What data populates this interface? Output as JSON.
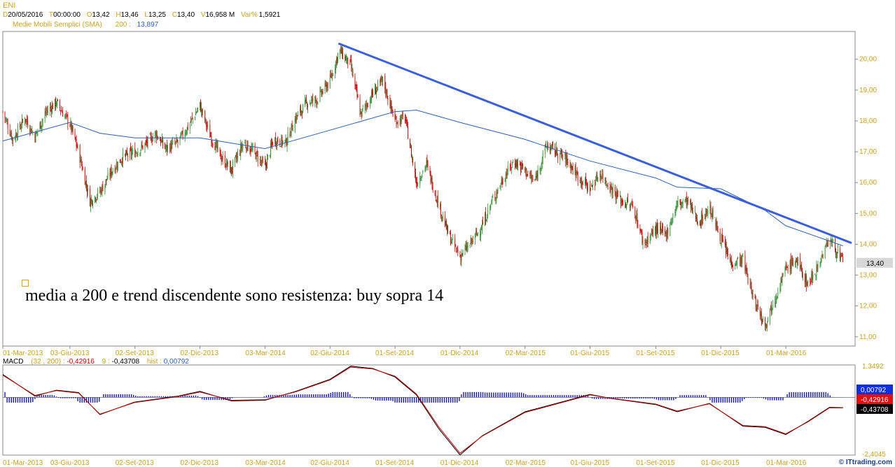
{
  "header": {
    "ticker": "ENI",
    "date_label": "D",
    "date": "20/05/2016",
    "time_label": "T",
    "time": "00:00:00",
    "open_label": "O",
    "open": "13,42",
    "high_label": "H",
    "high": "13,46",
    "low_label": "L",
    "low": "13,25",
    "close_label": "C",
    "close": "13,40",
    "vol_label": "V",
    "volume": "16,958 M",
    "var_label": "Var%",
    "var": "1,5921",
    "sma_name": "Medie Mobili Semplici (SMA)",
    "sma_period": "200 :",
    "sma_value": "13,897"
  },
  "annotation": "media a 200 e trend discendente sono resistenza: buy sopra 14",
  "price_tag": "13,40",
  "macd_header": {
    "name": "MACD",
    "params": "(32 , 200) :",
    "macd": "-0,42916",
    "signal_label": "9 :",
    "signal": "-0,43708",
    "hist_label": "hist :",
    "hist": "0,00792"
  },
  "macd_tags": {
    "hist": "0,00792",
    "macd": "-0,42916",
    "signal": "-0,43708"
  },
  "macd_axis": {
    "top": "1,3492",
    "bottom": "-2,4045"
  },
  "watermark": "© ITtrading.com",
  "colors": {
    "candle_up": "#2e8b2e",
    "candle_down": "#c00000",
    "sma": "#2b5fb8",
    "trendline": "#3a5fdc",
    "macd": "#000000",
    "signal": "#c00000",
    "hist": "#1a1aa0"
  },
  "chart_data": [
    {
      "type": "candlestick",
      "title": "ENI",
      "date_labels": [
        "01-Mar-2013",
        "03-Giu-2013",
        "02-Set-2013",
        "02-Dic-2013",
        "03-Mar-2014",
        "02-Giu-2014",
        "01-Set-2014",
        "01-Dic-2014",
        "02-Mar-2015",
        "01-Giu-2015",
        "01-Set-2015",
        "01-Dic-2015",
        "01-Mar-2016"
      ],
      "y_ticks": [
        "11,00",
        "12,00",
        "13,00",
        "14,00",
        "15,00",
        "16,00",
        "17,00",
        "18,00",
        "19,00",
        "20,00"
      ],
      "ylim": [
        10.7,
        20.9
      ],
      "close_path": [
        [
          "01-Mar-2013",
          18.3
        ],
        [
          "15-Mar-2013",
          17.4
        ],
        [
          "01-Apr-2013",
          18.1
        ],
        [
          "15-Apr-2013",
          17.5
        ],
        [
          "01-May-2013",
          18.3
        ],
        [
          "15-May-2013",
          18.6
        ],
        [
          "03-Jun-2013",
          17.9
        ],
        [
          "15-Jun-2013",
          17.0
        ],
        [
          "01-Jul-2013",
          15.4
        ],
        [
          "15-Jul-2013",
          15.7
        ],
        [
          "01-Aug-2013",
          16.4
        ],
        [
          "15-Aug-2013",
          16.8
        ],
        [
          "02-Sep-2013",
          17.0
        ],
        [
          "15-Sep-2013",
          17.2
        ],
        [
          "01-Oct-2013",
          17.6
        ],
        [
          "15-Oct-2013",
          17.1
        ],
        [
          "01-Nov-2013",
          17.3
        ],
        [
          "15-Nov-2013",
          17.8
        ],
        [
          "02-Dec-2013",
          18.5
        ],
        [
          "15-Dec-2013",
          17.6
        ],
        [
          "01-Jan-2014",
          16.8
        ],
        [
          "15-Jan-2014",
          16.4
        ],
        [
          "01-Feb-2014",
          17.3
        ],
        [
          "15-Feb-2014",
          17.0
        ],
        [
          "03-Mar-2014",
          16.5
        ],
        [
          "15-Mar-2014",
          17.4
        ],
        [
          "01-Apr-2014",
          17.3
        ],
        [
          "15-Apr-2014",
          18.1
        ],
        [
          "01-May-2014",
          18.6
        ],
        [
          "15-May-2014",
          18.7
        ],
        [
          "02-Jun-2014",
          19.3
        ],
        [
          "15-Jun-2014",
          20.3
        ],
        [
          "01-Jul-2014",
          19.8
        ],
        [
          "15-Jul-2014",
          18.2
        ],
        [
          "01-Aug-2014",
          18.9
        ],
        [
          "15-Aug-2014",
          19.3
        ],
        [
          "01-Sep-2014",
          18.0
        ],
        [
          "15-Sep-2014",
          18.1
        ],
        [
          "01-Oct-2014",
          16.0
        ],
        [
          "15-Oct-2014",
          16.6
        ],
        [
          "01-Nov-2014",
          15.3
        ],
        [
          "15-Nov-2014",
          14.3
        ],
        [
          "01-Dec-2014",
          13.6
        ],
        [
          "15-Dec-2014",
          14.0
        ],
        [
          "01-Jan-2015",
          14.6
        ],
        [
          "15-Jan-2015",
          15.4
        ],
        [
          "01-Feb-2015",
          16.2
        ],
        [
          "15-Feb-2015",
          16.7
        ],
        [
          "02-Mar-2015",
          16.4
        ],
        [
          "15-Mar-2015",
          16.0
        ],
        [
          "01-Apr-2015",
          17.2
        ],
        [
          "15-Apr-2015",
          17.0
        ],
        [
          "01-May-2015",
          16.7
        ],
        [
          "15-May-2015",
          16.2
        ],
        [
          "01-Jun-2015",
          15.8
        ],
        [
          "15-Jun-2015",
          16.3
        ],
        [
          "01-Jul-2015",
          15.8
        ],
        [
          "15-Jul-2015",
          15.4
        ],
        [
          "01-Aug-2015",
          15.2
        ],
        [
          "15-Aug-2015",
          14.0
        ],
        [
          "01-Sep-2015",
          14.5
        ],
        [
          "15-Sep-2015",
          14.3
        ],
        [
          "01-Oct-2015",
          15.3
        ],
        [
          "15-Oct-2015",
          15.4
        ],
        [
          "01-Nov-2015",
          14.7
        ],
        [
          "15-Nov-2015",
          15.2
        ],
        [
          "01-Dec-2015",
          14.2
        ],
        [
          "15-Dec-2015",
          13.4
        ],
        [
          "01-Jan-2016",
          13.5
        ],
        [
          "15-Jan-2016",
          12.3
        ],
        [
          "01-Feb-2016",
          11.4
        ],
        [
          "15-Feb-2016",
          12.3
        ],
        [
          "01-Mar-2016",
          13.2
        ],
        [
          "15-Mar-2016",
          13.5
        ],
        [
          "01-Apr-2016",
          12.7
        ],
        [
          "15-Apr-2016",
          13.3
        ],
        [
          "01-May-2016",
          14.2
        ],
        [
          "20-May-2016",
          13.4
        ]
      ],
      "sma_path": [
        [
          "01-Mar-2013",
          17.35
        ],
        [
          "03-Jun-2013",
          17.95
        ],
        [
          "15-Jul-2013",
          17.6
        ],
        [
          "02-Sep-2013",
          17.45
        ],
        [
          "02-Dec-2013",
          17.45
        ],
        [
          "03-Mar-2014",
          17.1
        ],
        [
          "02-Jun-2014",
          17.7
        ],
        [
          "01-Sep-2014",
          18.3
        ],
        [
          "01-Oct-2014",
          18.35
        ],
        [
          "01-Dec-2014",
          17.95
        ],
        [
          "02-Mar-2015",
          17.4
        ],
        [
          "01-Jun-2015",
          16.7
        ],
        [
          "01-Sep-2015",
          16.15
        ],
        [
          "01-Oct-2015",
          15.85
        ],
        [
          "01-Dec-2015",
          15.8
        ],
        [
          "01-Feb-2016",
          15.1
        ],
        [
          "01-Mar-2016",
          14.6
        ],
        [
          "20-May-2016",
          13.95
        ]
      ],
      "trendline": [
        [
          "15-Jun-2014",
          20.5
        ],
        [
          "31-May-2016",
          14.05
        ]
      ],
      "last_price": 13.4
    },
    {
      "type": "line",
      "title": "MACD",
      "date_labels": [
        "01-Mar-2013",
        "03-Giu-2013",
        "02-Set-2013",
        "02-Dic-2013",
        "03-Mar-2014",
        "02-Giu-2014",
        "01-Set-2014",
        "01-Dic-2014",
        "02-Mar-2015",
        "01-Giu-2015",
        "01-Set-2015",
        "01-Dic-2015",
        "01-Mar-2016"
      ],
      "ylim": [
        -2.4045,
        1.3492
      ],
      "series": [
        {
          "name": "MACD",
          "points": [
            [
              "01-Mar-2013",
              0.95
            ],
            [
              "15-Apr-2013",
              0.05
            ],
            [
              "15-May-2013",
              0.3
            ],
            [
              "15-Jun-2013",
              0.2
            ],
            [
              "15-Jul-2013",
              -0.72
            ],
            [
              "01-Sep-2013",
              -0.2
            ],
            [
              "01-Nov-2013",
              0.05
            ],
            [
              "02-Dec-2013",
              0.25
            ],
            [
              "15-Jan-2014",
              -0.15
            ],
            [
              "03-Mar-2014",
              -0.12
            ],
            [
              "15-Apr-2014",
              0.25
            ],
            [
              "02-Jun-2014",
              0.75
            ],
            [
              "01-Jul-2014",
              1.3
            ],
            [
              "01-Aug-2014",
              1.2
            ],
            [
              "01-Sep-2014",
              0.85
            ],
            [
              "01-Oct-2014",
              0.1
            ],
            [
              "01-Nov-2014",
              -1.3
            ],
            [
              "01-Dec-2014",
              -2.4
            ],
            [
              "01-Jan-2015",
              -1.6
            ],
            [
              "02-Mar-2015",
              -0.6
            ],
            [
              "01-Jun-2015",
              0.12
            ],
            [
              "01-Jul-2015",
              -0.05
            ],
            [
              "01-Sep-2015",
              -0.3
            ],
            [
              "01-Oct-2015",
              -0.6
            ],
            [
              "15-Nov-2015",
              -0.25
            ],
            [
              "01-Jan-2016",
              -1.2
            ],
            [
              "01-Feb-2016",
              -1.25
            ],
            [
              "01-Mar-2016",
              -1.55
            ],
            [
              "01-Apr-2016",
              -1.0
            ],
            [
              "01-May-2016",
              -0.42
            ],
            [
              "20-May-2016",
              -0.43
            ]
          ]
        },
        {
          "name": "signal",
          "points": [
            [
              "01-Mar-2013",
              0.92
            ],
            [
              "15-Apr-2013",
              0.08
            ],
            [
              "15-May-2013",
              0.28
            ],
            [
              "15-Jun-2013",
              0.18
            ],
            [
              "15-Jul-2013",
              -0.7
            ],
            [
              "01-Sep-2013",
              -0.22
            ],
            [
              "01-Nov-2013",
              0.03
            ],
            [
              "02-Dec-2013",
              0.22
            ],
            [
              "15-Jan-2014",
              -0.12
            ],
            [
              "03-Mar-2014",
              -0.1
            ],
            [
              "15-Apr-2014",
              0.23
            ],
            [
              "02-Jun-2014",
              0.72
            ],
            [
              "01-Jul-2014",
              1.26
            ],
            [
              "01-Aug-2014",
              1.18
            ],
            [
              "01-Sep-2014",
              0.88
            ],
            [
              "01-Oct-2014",
              0.14
            ],
            [
              "01-Nov-2014",
              -1.22
            ],
            [
              "01-Dec-2014",
              -2.33
            ],
            [
              "01-Jan-2015",
              -1.62
            ],
            [
              "02-Mar-2015",
              -0.63
            ],
            [
              "01-Jun-2015",
              0.1
            ],
            [
              "01-Jul-2015",
              -0.04
            ],
            [
              "01-Sep-2015",
              -0.28
            ],
            [
              "01-Oct-2015",
              -0.57
            ],
            [
              "15-Nov-2015",
              -0.27
            ],
            [
              "01-Jan-2016",
              -1.17
            ],
            [
              "01-Feb-2016",
              -1.22
            ],
            [
              "01-Mar-2016",
              -1.52
            ],
            [
              "01-Apr-2016",
              -1.02
            ],
            [
              "01-May-2016",
              -0.44
            ],
            [
              "20-May-2016",
              -0.44
            ]
          ]
        }
      ]
    }
  ]
}
